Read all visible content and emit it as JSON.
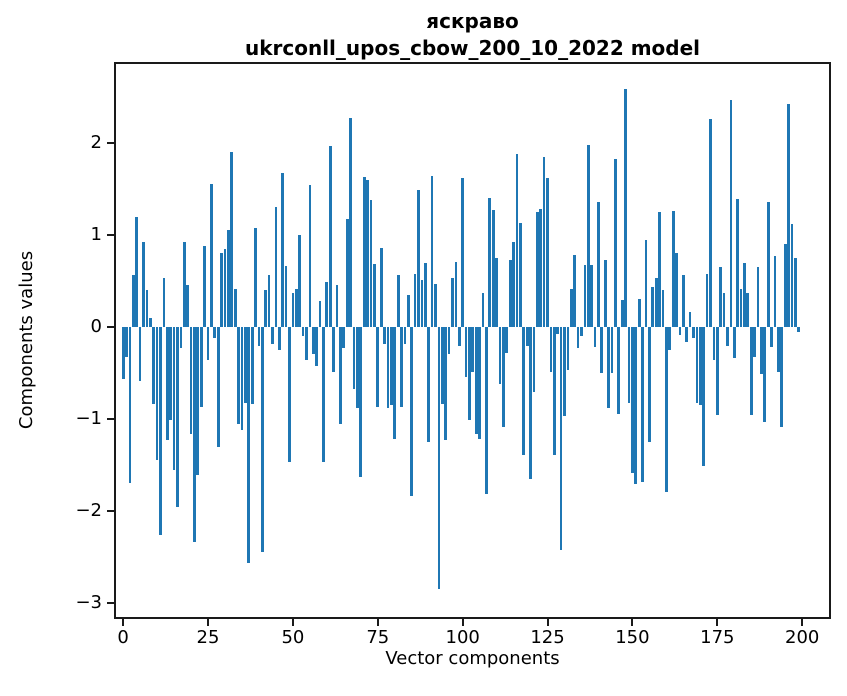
{
  "figure": {
    "title_line1": "яскраво",
    "title_line2": "ukrconll_upos_cbow_200_10_2022 model",
    "xlabel": "Vector components",
    "ylabel": "Components values"
  },
  "chart_data": {
    "type": "bar",
    "title": "яскраво — ukrconll_upos_cbow_200_10_2022 model",
    "xlabel": "Vector components",
    "ylabel": "Components values",
    "x_description": "vector component index 0..199",
    "bar_color": "#1f77b4",
    "grid": false,
    "legend": null,
    "x_ticks": [
      0,
      25,
      50,
      75,
      100,
      125,
      150,
      175,
      200
    ],
    "y_ticks": [
      -3,
      -2,
      -1,
      0,
      1,
      2
    ],
    "xlim": [
      -2.4,
      208.2
    ],
    "ylim": [
      -3.16,
      2.87
    ],
    "values": [
      -0.56,
      -0.32,
      -1.69,
      0.57,
      1.2,
      -0.58,
      0.92,
      0.4,
      0.1,
      -0.83,
      -1.44,
      -2.26,
      0.53,
      -1.23,
      -1.01,
      -1.55,
      -1.95,
      -0.23,
      0.93,
      0.46,
      -1.16,
      -2.33,
      -1.61,
      -0.87,
      0.88,
      -0.36,
      1.55,
      -0.12,
      -1.3,
      0.81,
      0.85,
      1.06,
      1.9,
      0.42,
      -1.05,
      -1.12,
      -0.82,
      -2.56,
      -0.84,
      1.08,
      -0.2,
      -2.44,
      0.4,
      0.57,
      -0.18,
      1.31,
      -0.25,
      1.68,
      0.66,
      -1.46,
      0.37,
      0.42,
      1.0,
      -0.1,
      -0.36,
      1.54,
      -0.29,
      -0.42,
      0.28,
      -1.46,
      0.49,
      1.97,
      -0.49,
      0.46,
      -1.05,
      -0.23,
      1.18,
      2.27,
      -0.67,
      -0.88,
      -1.63,
      1.63,
      1.6,
      1.38,
      0.69,
      -0.87,
      0.86,
      -0.18,
      -0.88,
      -0.85,
      -1.21,
      0.57,
      -0.87,
      -0.18,
      0.35,
      -1.84,
      0.58,
      1.49,
      0.51,
      0.7,
      -1.25,
      1.64,
      0.47,
      -2.85,
      -0.83,
      -1.23,
      -0.29,
      0.53,
      0.71,
      -0.2,
      1.62,
      -0.54,
      -1.01,
      -0.49,
      -1.16,
      -1.21,
      0.37,
      -1.81,
      1.4,
      1.27,
      0.75,
      -0.62,
      -1.08,
      -0.28,
      0.73,
      0.92,
      1.88,
      1.13,
      -1.39,
      -0.21,
      -1.65,
      -0.7,
      1.25,
      1.28,
      1.85,
      1.62,
      -0.49,
      -1.39,
      -0.07,
      -2.42,
      -0.97,
      -0.47,
      0.42,
      0.78,
      -0.23,
      -0.1,
      0.68,
      1.98,
      0.68,
      -0.22,
      1.36,
      -0.5,
      0.73,
      -0.88,
      -0.5,
      1.83,
      -0.94,
      0.29,
      2.59,
      -0.82,
      -1.59,
      -1.7,
      0.31,
      -1.68,
      0.95,
      -1.25,
      0.44,
      0.53,
      1.25,
      0.4,
      -1.79,
      -0.25,
      1.26,
      0.81,
      -0.08,
      0.57,
      -0.16,
      0.17,
      -0.12,
      -0.82,
      -0.85,
      -1.51,
      0.58,
      2.26,
      -0.36,
      -0.95,
      0.65,
      0.37,
      -0.2,
      2.47,
      -0.34,
      1.39,
      0.41,
      0.7,
      0.37,
      -0.95,
      -0.32,
      0.65,
      -0.51,
      -1.03,
      1.36,
      -0.22,
      0.77,
      -0.49,
      -1.08,
      0.9,
      2.43,
      1.12,
      0.75,
      -0.05
    ]
  }
}
